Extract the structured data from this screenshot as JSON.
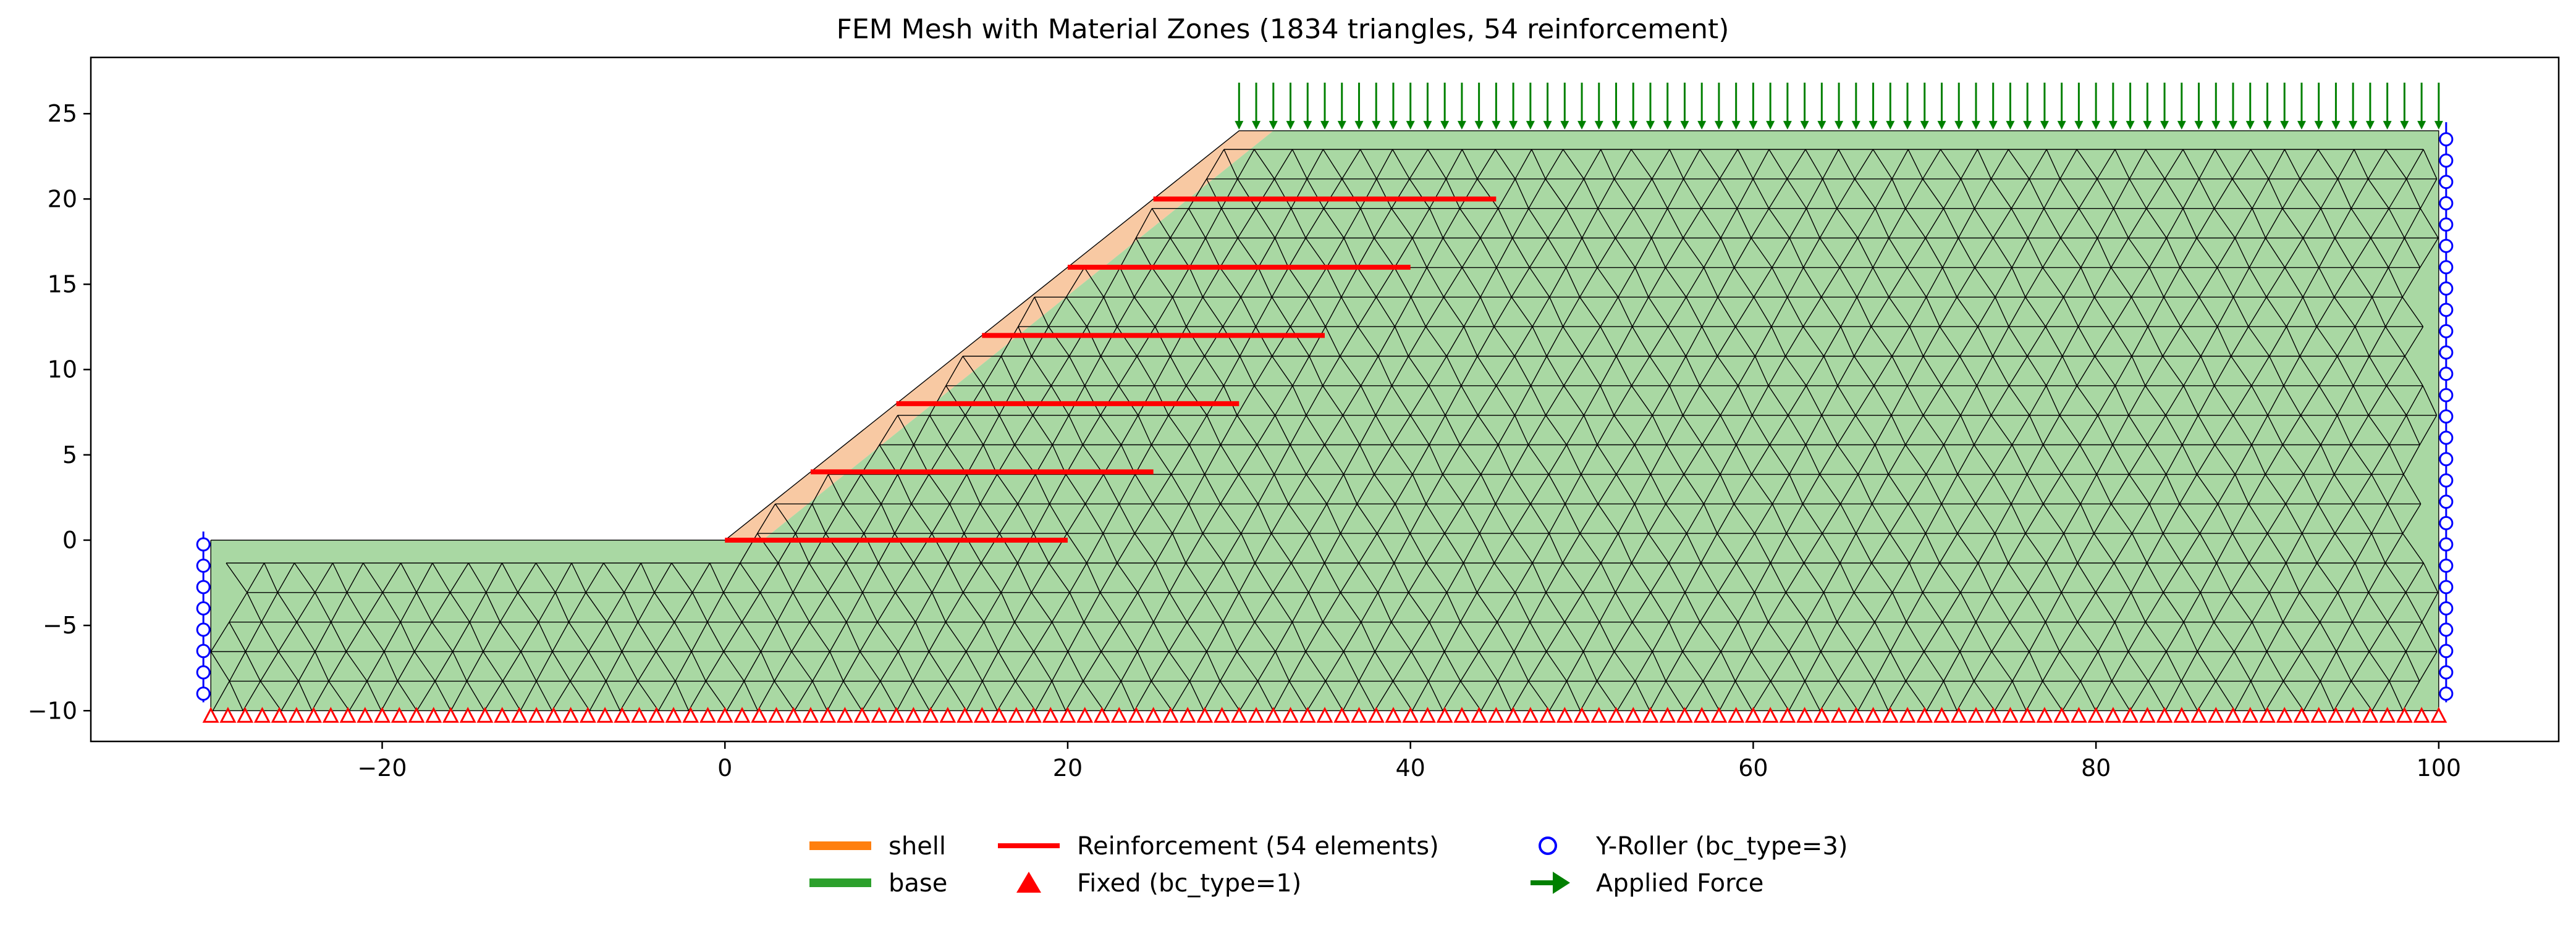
{
  "chart_data": {
    "type": "scatter",
    "title": "FEM Mesh with Material Zones (1834 triangles, 54 reinforcement)",
    "xlabel": "",
    "ylabel": "",
    "xlim": [
      -37,
      107
    ],
    "ylim": [
      -11.8,
      28.3
    ],
    "xticks": [
      -20,
      0,
      20,
      40,
      60,
      80,
      100
    ],
    "xtick_labels": [
      "−20",
      "0",
      "20",
      "40",
      "60",
      "80",
      "100"
    ],
    "yticks": [
      -10,
      -5,
      0,
      5,
      10,
      15,
      20,
      25
    ],
    "ytick_labels": [
      "−10",
      "−5",
      "0",
      "5",
      "10",
      "15",
      "20",
      "25"
    ],
    "grid": false,
    "legend_position": "bottom-center",
    "material_zones": [
      {
        "name": "shell",
        "color": "#ff7f0e",
        "fill": "#f8c9a3",
        "polygon": [
          [
            0,
            0
          ],
          [
            2.2,
            0
          ],
          [
            32,
            24
          ],
          [
            30,
            24
          ]
        ]
      },
      {
        "name": "base",
        "color": "#2ca02c",
        "fill": "#a9d8a3",
        "polygon": [
          [
            -30,
            -10
          ],
          [
            100,
            -10
          ],
          [
            100,
            24
          ],
          [
            32,
            24
          ],
          [
            2.2,
            0
          ],
          [
            -30,
            0
          ]
        ]
      }
    ],
    "reinforcement": {
      "label": "Reinforcement (54 elements)",
      "color": "#ff0000",
      "layers": [
        {
          "y": 0,
          "x_start": 0,
          "x_end": 20
        },
        {
          "y": 4,
          "x_start": 5,
          "x_end": 25
        },
        {
          "y": 8,
          "x_start": 10,
          "x_end": 30
        },
        {
          "y": 12,
          "x_start": 15,
          "x_end": 35
        },
        {
          "y": 16,
          "x_start": 20,
          "x_end": 40
        },
        {
          "y": 20,
          "x_start": 25,
          "x_end": 45
        }
      ]
    },
    "boundary_conditions": [
      {
        "label": "Fixed (bc_type=1)",
        "marker": "triangle",
        "color": "#ff0000",
        "location": "bottom edge y=-10",
        "x_range": [
          -30,
          100
        ],
        "spacing": 1.0
      },
      {
        "label": "Y-Roller (bc_type=3)",
        "marker": "circle",
        "color": "#0000ff",
        "location": "side edges x=-30 and x=100",
        "y_range_left": [
          -9,
          0
        ],
        "y_range_right": [
          -9,
          24
        ],
        "spacing": 1.25
      }
    ],
    "applied_force": {
      "label": "Applied Force",
      "color": "#008000",
      "direction": "downward",
      "y": 24,
      "x_range": [
        30,
        100
      ],
      "spacing": 1.0
    },
    "mesh": {
      "triangles": 1834,
      "edge_color": "#000000",
      "nominal_spacing": 2.0
    },
    "legend": [
      {
        "label": "shell",
        "type": "line",
        "color": "#ff7f0e"
      },
      {
        "label": "base",
        "type": "line",
        "color": "#2ca02c"
      },
      {
        "label": "Reinforcement (54 elements)",
        "type": "line",
        "color": "#ff0000"
      },
      {
        "label": "Fixed (bc_type=1)",
        "type": "triangle",
        "color": "#ff0000"
      },
      {
        "label": "Y-Roller (bc_type=3)",
        "type": "circle",
        "color": "#0000ff"
      },
      {
        "label": "Applied Force",
        "type": "arrow",
        "color": "#008000"
      }
    ]
  }
}
